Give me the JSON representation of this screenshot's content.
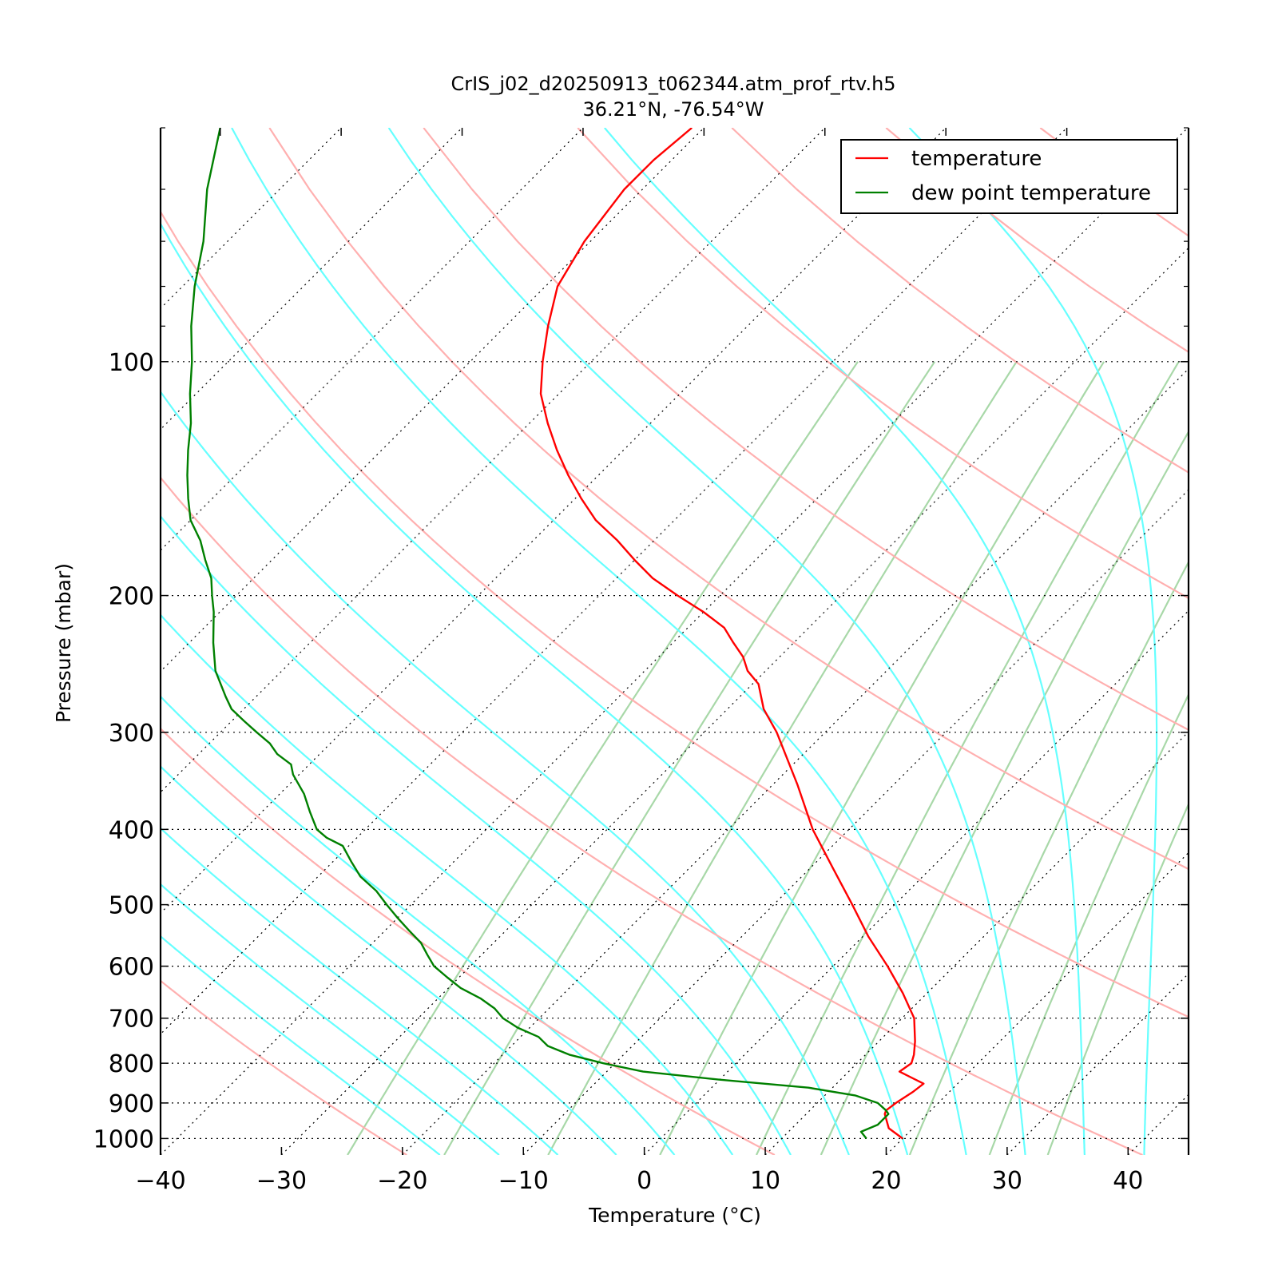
{
  "chart_data": {
    "type": "line",
    "diagram": "skew-T log-P",
    "title": "CrIS_j02_d20250913_t062344.atm_prof_rtv.h5",
    "subtitle": "36.21$^\\circ$N, -76.54$^\\circ$W",
    "subtitle_display": "36.21°N, -76.54°W",
    "xlabel": "Temperature (°C)",
    "ylabel": "Pressure (mbar)",
    "xlim": [
      -40,
      45
    ],
    "ylim": [
      1050,
      50
    ],
    "y_scale": "log",
    "skew_degrees": 45,
    "x_ticks": [
      -40,
      -30,
      -20,
      -10,
      0,
      10,
      20,
      30,
      40
    ],
    "x_tick_labels": [
      "−40",
      "−30",
      "−20",
      "−10",
      "0",
      "10",
      "20",
      "30",
      "40"
    ],
    "y_ticks": [
      100,
      200,
      300,
      400,
      500,
      600,
      700,
      800,
      900,
      1000
    ],
    "y_tick_labels": [
      "100",
      "200",
      "300",
      "400",
      "500",
      "600",
      "700",
      "800",
      "900",
      "1000"
    ],
    "legend_position": "top-right",
    "grid": true,
    "background_lines": {
      "isotherms": {
        "color": "#000000",
        "style": "dotted",
        "values_c": [
          -110,
          -100,
          -90,
          -80,
          -70,
          -60,
          -50,
          -40,
          -30,
          -20,
          -10,
          0,
          10,
          20,
          30,
          40
        ]
      },
      "dry_adiabats": {
        "color": "#ffb0b0",
        "theta_k": [
          250,
          280,
          310,
          340,
          370,
          400,
          430,
          460,
          490,
          520
        ]
      },
      "moist_adiabats": {
        "color": "#66ffff",
        "start_c_at_1000": [
          -20,
          -15,
          -10,
          -5,
          0,
          5,
          10,
          15,
          20,
          25,
          30,
          35,
          40,
          45,
          50,
          55,
          60
        ]
      },
      "mixing_ratio_lines": {
        "color": "#a8d8a8",
        "g_per_kg": [
          0.5,
          1,
          2,
          4,
          7,
          10,
          16,
          24,
          32
        ]
      }
    },
    "series": [
      {
        "name": "temperature",
        "color": "#ff0000",
        "pressure": [
          1000,
          970,
          930,
          920,
          900,
          870,
          850,
          820,
          800,
          780,
          750,
          700,
          650,
          600,
          550,
          500,
          450,
          400,
          350,
          300,
          280,
          260,
          250,
          240,
          230,
          220,
          210,
          200,
          190,
          180,
          170,
          160,
          150,
          140,
          130,
          120,
          110,
          100,
          90,
          80,
          70,
          60,
          55,
          50
        ],
        "values": [
          20,
          18,
          16.5,
          16.3,
          16.5,
          17.0,
          17.2,
          14.2,
          14.5,
          14.0,
          13.0,
          11.0,
          8.0,
          4.5,
          0.5,
          -3.5,
          -8.0,
          -13.0,
          -18.0,
          -24.0,
          -27.0,
          -29.5,
          -31.5,
          -33.0,
          -35.0,
          -37.0,
          -40.0,
          -43.5,
          -47.0,
          -50.0,
          -53.0,
          -56.5,
          -59.5,
          -62.5,
          -65.5,
          -68.5,
          -71.5,
          -74.0,
          -76.5,
          -79.0,
          -80.5,
          -81.5,
          -81.5,
          -81.0
        ]
      },
      {
        "name": "dew point temperature",
        "color": "#008000",
        "pressure": [
          1000,
          980,
          960,
          930,
          920,
          900,
          880,
          860,
          840,
          820,
          800,
          780,
          760,
          740,
          720,
          700,
          680,
          660,
          640,
          620,
          600,
          580,
          560,
          540,
          520,
          500,
          480,
          460,
          440,
          420,
          410,
          400,
          380,
          360,
          340,
          330,
          320,
          310,
          300,
          290,
          280,
          270,
          250,
          230,
          210,
          200,
          190,
          180,
          170,
          160,
          150,
          140,
          130,
          120,
          110,
          100,
          90,
          80,
          70,
          60,
          50
        ],
        "values": [
          17,
          16,
          16.8,
          16.8,
          16.3,
          15.0,
          12.5,
          8.0,
          0.0,
          -7.0,
          -11.0,
          -14.5,
          -17.0,
          -18.5,
          -21.0,
          -23.0,
          -24.5,
          -26.5,
          -29.0,
          -31.0,
          -33.0,
          -34.5,
          -36.0,
          -38.0,
          -40.0,
          -42.0,
          -44.0,
          -46.5,
          -48.5,
          -50.5,
          -52.5,
          -54.0,
          -56.0,
          -58.0,
          -60.5,
          -61.5,
          -63.5,
          -65.0,
          -67.0,
          -69.0,
          -71.0,
          -72.5,
          -75.5,
          -78.0,
          -80.5,
          -82.0,
          -83.5,
          -85.5,
          -87.5,
          -90.0,
          -92.0,
          -94.0,
          -96.0,
          -98.0,
          -100.5,
          -103.0,
          -106.0,
          -109.0,
          -112.0,
          -116.0,
          -120.0
        ]
      }
    ]
  }
}
